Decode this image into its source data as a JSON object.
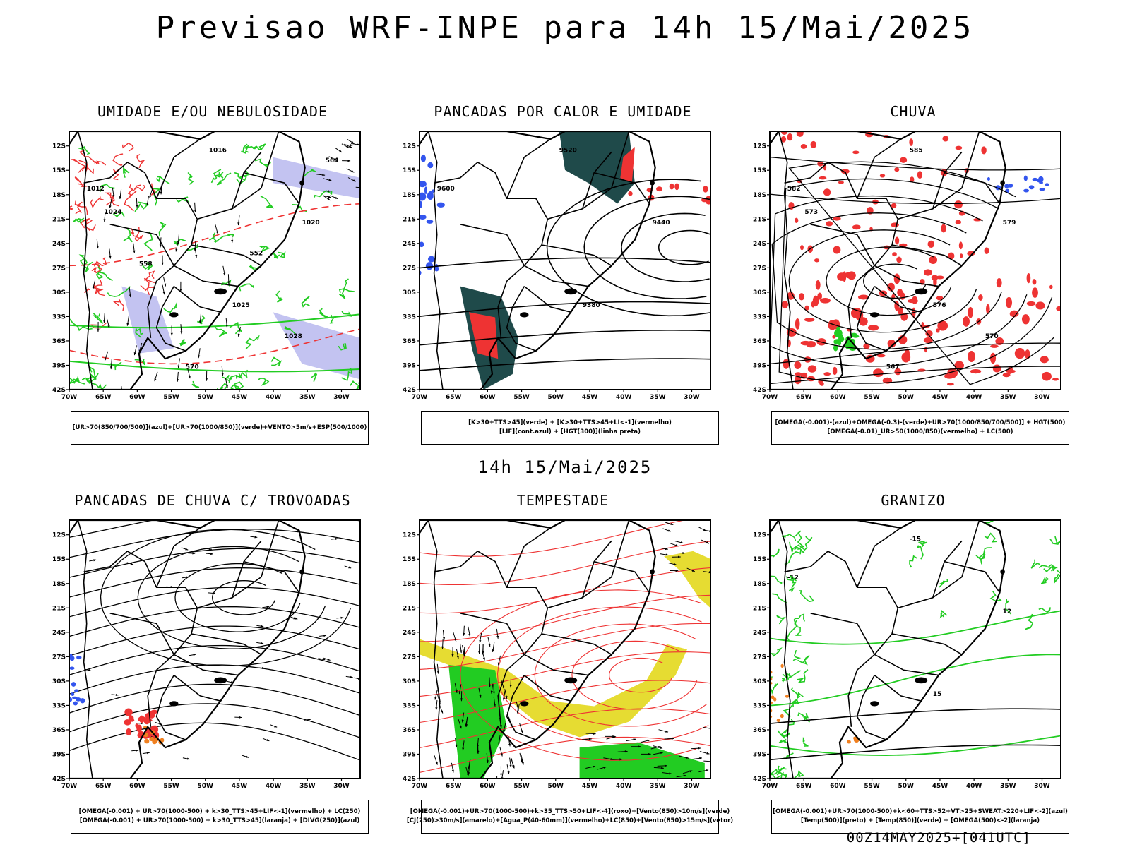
{
  "title": "Previsao WRF-INPE  para 14h 15/Mai/2025",
  "subtitle": "14h 15/Mai/2025",
  "footer": "00Z14MAY2025+[041UTC]",
  "axes": {
    "lat_labels": [
      "12S",
      "15S",
      "18S",
      "21S",
      "24S",
      "27S",
      "30S",
      "33S",
      "36S",
      "39S",
      "42S"
    ],
    "lon_labels": [
      "70W",
      "65W",
      "60W",
      "55W",
      "50W",
      "45W",
      "40W",
      "35W",
      "30W"
    ]
  },
  "panels": [
    {
      "id": "umidade",
      "title": "UMIDADE E/OU NEBULOSIDADE",
      "legend": [
        "[UR>70(850/700/500)](azul)+[UR>70(1000/850)](verde)+VENTO>5m/s+ESP(500/1000)"
      ],
      "contour_labels": [
        "1012",
        "1016",
        "1020",
        "1025",
        "1024",
        "1028",
        "570",
        "564",
        "558",
        "552"
      ]
    },
    {
      "id": "pancadas-calor",
      "title": "PANCADAS POR CALOR E UMIDADE",
      "legend": [
        "[K>30+TTS>45](verde) + [K>30+TTS>45+LI<-1](vermelho)",
        "[LIF](cont.azul) + [HGT(300)](linha preta)"
      ],
      "contour_labels": [
        "9600",
        "9520",
        "9440",
        "9380"
      ]
    },
    {
      "id": "chuva",
      "title": "CHUVA",
      "legend": [
        "[OMEGA(-0.001)-(azul)+OMEGA(-0.3)-(verde)+UR>70(1000/850/700/500)] + HGT(500)",
        "[OMEGA(-0.01)_UR>50(1000/850)(vermelho) + LC(500)"
      ],
      "contour_labels": [
        "582",
        "585",
        "579",
        "576",
        "573",
        "570",
        "567"
      ]
    },
    {
      "id": "pancadas-trovoadas",
      "title": "PANCADAS DE CHUVA C/ TROVOADAS",
      "legend": [
        "[OMEGA(-0.001) + UR>70(1000-500) + k>30_TTS>45+LIF<-1](vermelho) + LC(250)",
        "[OMEGA(-0.001) + UR>70(1000-500) + k>30_TTS>45](laranja) + [DIVG(250)](azul)"
      ],
      "contour_labels": []
    },
    {
      "id": "tempestade",
      "title": "TEMPESTADE",
      "legend": [
        "[OMEGA(-0.001)+UR>70(1000-500)+k>35_TTS>50+LIF<-4](roxo)+[Vento(850)>10m/s](verde)",
        "[CJ(250)>30m/s](amarelo)+[Agua_P(40-60mm)](vermelho)+LC(850)+[Vento(850)>15m/s](vetor)"
      ],
      "contour_labels": []
    },
    {
      "id": "granizo",
      "title": "GRANIZO",
      "legend": [
        "[OMEGA(-0.001)+UR>70(1000-500)+k<60+TTS>52+VT>25+SWEAT>220+LIF<-2](azul)",
        "[Temp(500)](preto) + [Temp(850)](verde) + [OMEGA(500)<-2](laranja)"
      ],
      "contour_labels": [
        "-12",
        "-15",
        "12",
        "15"
      ]
    }
  ],
  "colors": {
    "coast": "#000000",
    "green": "#22cc22",
    "red": "#ee3333",
    "blue": "#3355ee",
    "lavender": "#b4b4ee",
    "darkteal": "#1f4a4a",
    "yellow": "#e6dc32",
    "orange": "#f08020"
  }
}
